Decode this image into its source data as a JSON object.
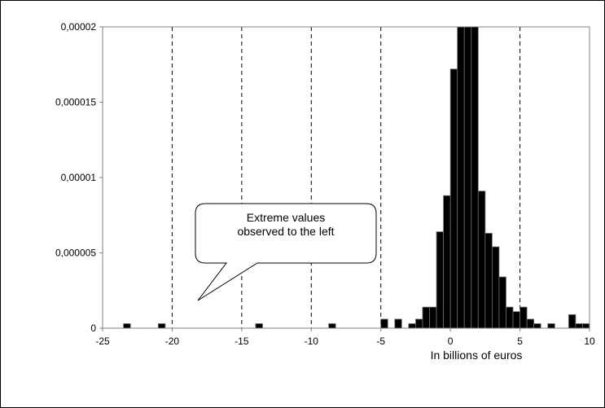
{
  "chart_data": {
    "type": "bar",
    "title": "",
    "xlabel": "In billions of euros",
    "ylabel": "",
    "xlim": [
      -25,
      10
    ],
    "ylim": [
      0,
      2e-05
    ],
    "grid": "vertical dashed at x = -20, -15, -10, -5, 5",
    "x_ticks": [
      "-25",
      "-20",
      "-15",
      "-10",
      "-5",
      "0",
      "5",
      "10"
    ],
    "y_ticks": [
      "0",
      "0,000005",
      "0,00001",
      "0,000015",
      "0,00002"
    ],
    "bin_width": 0.5,
    "series": [
      {
        "bins": [
          {
            "x": -23.25,
            "y": 3e-07
          },
          {
            "x": -20.75,
            "y": 3e-07
          },
          {
            "x": -13.75,
            "y": 3e-07
          },
          {
            "x": -8.5,
            "y": 3e-07
          },
          {
            "x": -4.75,
            "y": 6e-07
          },
          {
            "x": -3.75,
            "y": 6e-07
          },
          {
            "x": -2.75,
            "y": 3e-07
          },
          {
            "x": -2.25,
            "y": 6e-07
          },
          {
            "x": -1.75,
            "y": 1.4e-06
          },
          {
            "x": -1.25,
            "y": 1.4e-06
          },
          {
            "x": -0.75,
            "y": 6.4e-06
          },
          {
            "x": -0.25,
            "y": 8.8e-06
          },
          {
            "x": 0.25,
            "y": 1.72e-05
          },
          {
            "x": 0.75,
            "y": 2e-05
          },
          {
            "x": 1.25,
            "y": 2e-05
          },
          {
            "x": 1.75,
            "y": 2e-05
          },
          {
            "x": 2.25,
            "y": 9.1e-06
          },
          {
            "x": 2.75,
            "y": 6.3e-06
          },
          {
            "x": 3.25,
            "y": 5.4e-06
          },
          {
            "x": 3.75,
            "y": 3.4e-06
          },
          {
            "x": 4.25,
            "y": 1.4e-06
          },
          {
            "x": 4.75,
            "y": 1.1e-06
          },
          {
            "x": 5.25,
            "y": 1.4e-06
          },
          {
            "x": 5.75,
            "y": 6e-07
          },
          {
            "x": 6.25,
            "y": 3e-07
          },
          {
            "x": 7.25,
            "y": 3e-07
          },
          {
            "x": 8.75,
            "y": 9e-07
          },
          {
            "x": 9.25,
            "y": 3e-07
          },
          {
            "x": 9.75,
            "y": 3e-07
          }
        ]
      }
    ],
    "annotation": "Extreme values\nobserved to the left"
  }
}
